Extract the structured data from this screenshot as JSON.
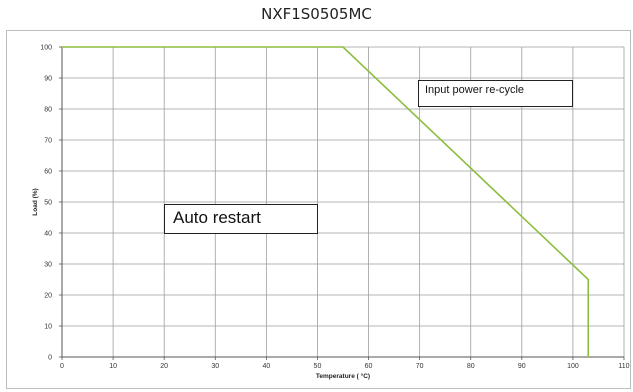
{
  "chart_data": {
    "type": "line",
    "title": "NXF1S0505MC",
    "xlabel": "Temperature ( °C)",
    "ylabel": "Load (%)",
    "xlim": [
      0,
      110
    ],
    "ylim": [
      0,
      100
    ],
    "x_ticks": [
      "0",
      "10",
      "20",
      "30",
      "40",
      "50",
      "60",
      "70",
      "80",
      "90",
      "100",
      "110"
    ],
    "y_ticks": [
      "0",
      "10",
      "20",
      "30",
      "40",
      "50",
      "60",
      "70",
      "80",
      "90",
      "100"
    ],
    "grid": true,
    "series": [
      {
        "color": "#8cbd3f",
        "points": [
          [
            0,
            100
          ],
          [
            55,
            100
          ],
          [
            103,
            25
          ],
          [
            103,
            0
          ]
        ]
      }
    ],
    "annotations": [
      {
        "text": "Input power re-cycle"
      },
      {
        "text": "Auto restart"
      }
    ]
  }
}
